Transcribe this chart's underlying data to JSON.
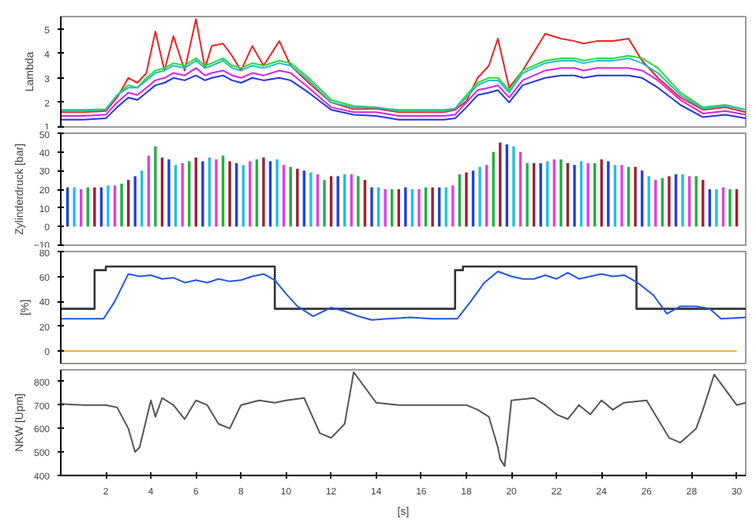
{
  "chart_data": [
    {
      "type": "line",
      "ylabel": "Lambda",
      "xlim": [
        0,
        30.4
      ],
      "ylim": [
        1,
        5.5
      ],
      "yticks": [
        1,
        2,
        3,
        4,
        5
      ],
      "tick_labels": "y",
      "grid": false,
      "x": [
        0,
        1,
        2,
        2.5,
        3,
        3.4,
        3.8,
        4.2,
        4.6,
        5,
        5.5,
        6,
        6.4,
        6.7,
        7.2,
        7.6,
        8,
        8.5,
        9,
        9.7,
        10.2,
        11,
        12,
        13,
        14,
        15,
        16,
        17,
        17.5,
        18,
        18.5,
        19,
        19.4,
        19.9,
        20.5,
        21.5,
        22.2,
        22.8,
        23.2,
        23.8,
        24.5,
        25.2,
        25.8,
        26.5,
        27.5,
        28.5,
        29.5,
        30.4
      ],
      "series": [
        {
          "color": "#ee2222",
          "values": [
            1.6,
            1.6,
            1.65,
            2.2,
            3.0,
            2.8,
            3.2,
            4.9,
            3.3,
            4.7,
            3.3,
            5.4,
            3.4,
            4.3,
            4.4,
            3.9,
            3.3,
            4.3,
            3.5,
            4.5,
            3.5,
            2.8,
            2.0,
            1.72,
            1.75,
            1.6,
            1.6,
            1.6,
            1.7,
            2.05,
            3.0,
            3.5,
            4.6,
            2.6,
            3.3,
            4.8,
            4.6,
            4.5,
            4.4,
            4.5,
            4.5,
            4.6,
            3.7,
            3.0,
            2.2,
            1.7,
            1.8,
            1.6
          ]
        },
        {
          "color": "#22dd33",
          "values": [
            1.65,
            1.65,
            1.7,
            2.3,
            2.7,
            2.6,
            3.0,
            3.3,
            3.4,
            3.6,
            3.5,
            3.8,
            3.5,
            3.6,
            3.8,
            3.5,
            3.4,
            3.6,
            3.5,
            3.7,
            3.6,
            3.0,
            2.1,
            1.85,
            1.8,
            1.65,
            1.65,
            1.65,
            1.75,
            2.3,
            2.8,
            3.0,
            3.0,
            2.5,
            3.3,
            3.7,
            3.8,
            3.8,
            3.7,
            3.8,
            3.8,
            3.9,
            3.8,
            3.4,
            2.4,
            1.8,
            1.9,
            1.7
          ]
        },
        {
          "color": "#22bbcc",
          "values": [
            1.7,
            1.7,
            1.72,
            2.3,
            2.6,
            2.6,
            2.9,
            3.2,
            3.3,
            3.5,
            3.4,
            3.7,
            3.4,
            3.5,
            3.7,
            3.4,
            3.3,
            3.5,
            3.4,
            3.6,
            3.5,
            2.9,
            2.0,
            1.8,
            1.78,
            1.7,
            1.7,
            1.7,
            1.75,
            2.2,
            2.7,
            2.9,
            2.9,
            2.4,
            3.2,
            3.6,
            3.7,
            3.7,
            3.6,
            3.7,
            3.7,
            3.8,
            3.6,
            3.2,
            2.3,
            1.75,
            1.85,
            1.7
          ]
        },
        {
          "color": "#dd22dd",
          "values": [
            1.45,
            1.45,
            1.5,
            2.0,
            2.4,
            2.3,
            2.6,
            2.9,
            3.0,
            3.2,
            3.1,
            3.4,
            3.1,
            3.2,
            3.3,
            3.1,
            3.0,
            3.2,
            3.1,
            3.3,
            3.2,
            2.6,
            1.8,
            1.6,
            1.6,
            1.45,
            1.45,
            1.45,
            1.5,
            2.0,
            2.5,
            2.6,
            2.7,
            2.2,
            2.9,
            3.3,
            3.4,
            3.4,
            3.3,
            3.4,
            3.4,
            3.4,
            3.3,
            2.9,
            2.1,
            1.55,
            1.65,
            1.5
          ]
        },
        {
          "color": "#2233ee",
          "values": [
            1.3,
            1.3,
            1.35,
            1.8,
            2.2,
            2.1,
            2.4,
            2.7,
            2.8,
            3.0,
            2.9,
            3.1,
            2.9,
            3.0,
            3.1,
            2.9,
            2.8,
            3.0,
            2.9,
            3.0,
            2.9,
            2.4,
            1.7,
            1.5,
            1.45,
            1.3,
            1.3,
            1.3,
            1.35,
            1.8,
            2.3,
            2.4,
            2.5,
            2.0,
            2.7,
            3.0,
            3.1,
            3.1,
            3.0,
            3.1,
            3.1,
            3.1,
            3.0,
            2.6,
            1.9,
            1.4,
            1.5,
            1.35
          ]
        }
      ]
    },
    {
      "type": "bar",
      "ylabel": "Zylinderdruck [bar]",
      "xlim": [
        0,
        30.4
      ],
      "ylim": [
        -10,
        50
      ],
      "yticks": [
        -10,
        0,
        10,
        20,
        30,
        40,
        50
      ],
      "tick_labels": "y",
      "grid": false,
      "series": [
        {
          "color": "#2040e0",
          "x": [
            0.3,
            1.8,
            3.3,
            4.8,
            6.3,
            7.8,
            9.3,
            10.8,
            12.3,
            13.8,
            15.3,
            16.8,
            18.3,
            19.8,
            21.3,
            22.8,
            24.3,
            25.8,
            27.3,
            28.8
          ],
          "values": [
            21,
            21,
            27,
            36,
            35,
            34,
            35,
            30,
            27,
            21,
            21,
            21,
            30,
            44,
            34,
            33,
            35,
            30,
            28,
            20
          ]
        },
        {
          "color": "#20c0e0",
          "x": [
            0.6,
            2.1,
            3.6,
            5.1,
            6.6,
            8.1,
            9.6,
            11.1,
            12.6,
            14.1,
            15.6,
            17.1,
            18.6,
            20.1,
            21.6,
            23.1,
            24.6,
            26.1,
            27.6,
            29.1
          ],
          "values": [
            21,
            22,
            30,
            33,
            37,
            33,
            36,
            29,
            28,
            21,
            20,
            21,
            32,
            43,
            35,
            35,
            33,
            27,
            28,
            20
          ]
        },
        {
          "color": "#e040e0",
          "x": [
            0.9,
            2.4,
            3.9,
            5.4,
            6.9,
            8.4,
            9.9,
            11.4,
            12.9,
            14.4,
            15.9,
            17.4,
            18.9,
            20.4,
            21.9,
            23.4,
            24.9,
            26.4,
            27.9,
            29.4
          ],
          "values": [
            20,
            22,
            38,
            34,
            36,
            35,
            33,
            28,
            28,
            20,
            20,
            22,
            33,
            40,
            36,
            34,
            33,
            25,
            27,
            21
          ]
        },
        {
          "color": "#20b040",
          "x": [
            1.2,
            2.7,
            4.2,
            5.7,
            7.2,
            8.7,
            10.2,
            11.7,
            13.2,
            14.7,
            16.2,
            17.7,
            19.2,
            20.7,
            22.2,
            23.7,
            25.2,
            26.7,
            28.2,
            29.7
          ],
          "values": [
            21,
            23,
            43,
            35,
            38,
            36,
            32,
            25,
            27,
            20,
            21,
            28,
            40,
            34,
            36,
            34,
            32,
            26,
            27,
            20
          ]
        },
        {
          "color": "#a02030",
          "x": [
            1.5,
            3.0,
            4.5,
            6.0,
            7.5,
            9.0,
            10.5,
            12.0,
            13.5,
            15.0,
            16.5,
            18.0,
            19.5,
            21.0,
            22.5,
            24.0,
            25.5,
            27.0,
            28.5,
            30.0
          ],
          "values": [
            21,
            25,
            37,
            37,
            35,
            37,
            31,
            27,
            25,
            20,
            21,
            29,
            45,
            34,
            34,
            36,
            32,
            27,
            25,
            20
          ]
        }
      ]
    },
    {
      "type": "line",
      "ylabel": "[%]",
      "xlim": [
        0,
        30.4
      ],
      "ylim": [
        -10,
        80
      ],
      "yticks": [
        0,
        20,
        40,
        60,
        80
      ],
      "tick_labels": "y",
      "grid": false,
      "series": [
        {
          "type": "step",
          "color": "#333333",
          "x": [
            0,
            1.5,
            2.0,
            9.5,
            17.5,
            17.85,
            25.55,
            30.4
          ],
          "values": [
            34,
            65,
            68,
            34,
            65,
            68,
            34,
            34
          ]
        },
        {
          "color": "#2255ee",
          "x": [
            0,
            1.9,
            2.4,
            3.0,
            3.5,
            4.0,
            4.5,
            5.0,
            5.5,
            6.0,
            6.5,
            7.0,
            7.5,
            8.0,
            8.5,
            9.0,
            9.5,
            10.0,
            10.5,
            11.2,
            12.0,
            12.6,
            13.2,
            13.8,
            14.5,
            15.5,
            16.5,
            17.6,
            18.2,
            18.8,
            19.4,
            20.0,
            20.5,
            21.0,
            21.5,
            22.0,
            22.5,
            23.0,
            23.5,
            24.0,
            24.5,
            25.0,
            25.6,
            26.3,
            26.9,
            27.5,
            28.2,
            28.8,
            29.3,
            30.4
          ],
          "values": [
            26,
            26,
            40,
            62,
            60,
            61,
            58,
            59,
            55,
            57,
            55,
            58,
            56,
            57,
            60,
            62,
            57,
            46,
            36,
            28,
            35,
            32,
            28,
            25,
            26,
            27,
            26,
            26,
            40,
            55,
            64,
            60,
            58,
            58,
            61,
            58,
            63,
            58,
            60,
            62,
            60,
            61,
            55,
            45,
            30,
            36,
            36,
            34,
            26,
            27
          ]
        },
        {
          "color": "#f0b020",
          "x": [
            0,
            30
          ],
          "values": [
            0,
            0
          ]
        }
      ]
    },
    {
      "type": "line",
      "ylabel": "NKW [Upm]",
      "xlabel": "[s]",
      "xlim": [
        0,
        30.4
      ],
      "ylim": [
        400,
        850
      ],
      "yticks": [
        400,
        500,
        600,
        700,
        800
      ],
      "xticks": [
        2,
        4,
        6,
        8,
        10,
        12,
        14,
        16,
        18,
        20,
        22,
        24,
        26,
        28,
        30
      ],
      "grid": false,
      "series": [
        {
          "color": "#555555",
          "x": [
            0,
            1,
            2,
            2.5,
            3,
            3.3,
            3.5,
            4,
            4.2,
            4.5,
            5,
            5.5,
            6,
            6.5,
            7,
            7.5,
            8,
            8.8,
            9.5,
            10,
            10.8,
            11.5,
            12,
            12.6,
            13,
            14,
            15,
            16,
            17,
            18,
            18.5,
            19,
            19.4,
            19.5,
            19.7,
            20,
            21,
            21.5,
            22,
            22.5,
            23,
            23.5,
            24,
            24.5,
            25,
            26,
            26.5,
            27,
            27.5,
            28.2,
            28.5,
            29,
            30,
            30.4
          ],
          "values": [
            705,
            700,
            700,
            690,
            600,
            500,
            520,
            720,
            650,
            730,
            700,
            640,
            720,
            700,
            620,
            600,
            700,
            720,
            710,
            720,
            730,
            580,
            560,
            620,
            840,
            710,
            700,
            700,
            700,
            700,
            680,
            650,
            520,
            470,
            440,
            720,
            730,
            700,
            660,
            640,
            700,
            660,
            720,
            680,
            710,
            720,
            640,
            560,
            540,
            600,
            680,
            830,
            700,
            710
          ]
        }
      ]
    }
  ]
}
